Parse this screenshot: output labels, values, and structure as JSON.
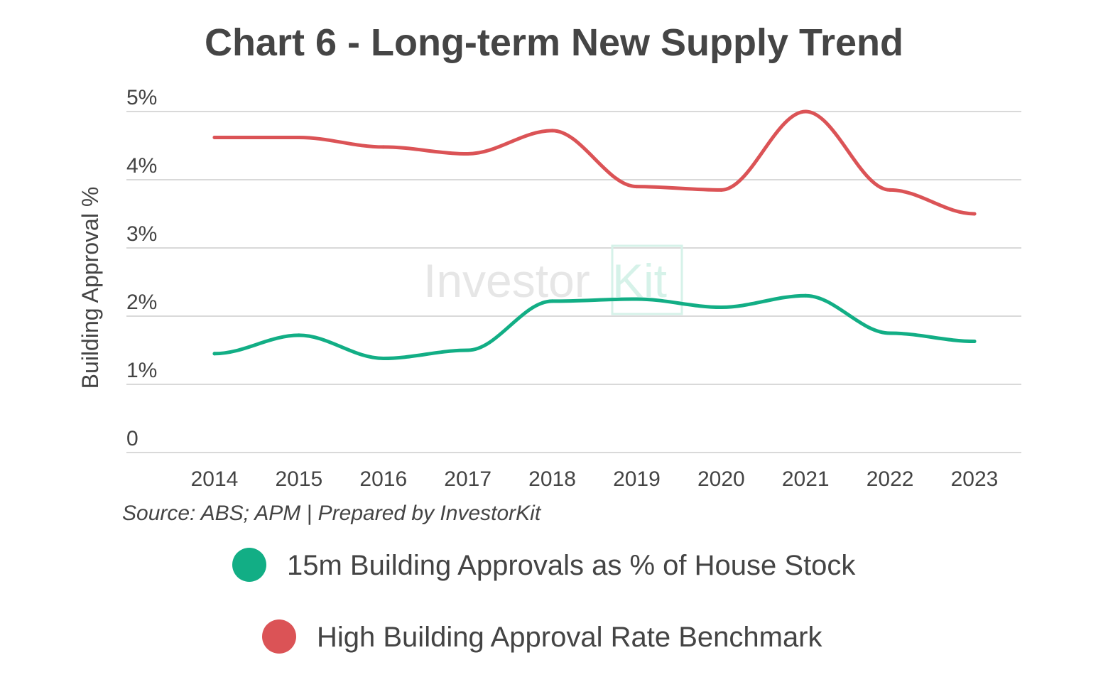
{
  "chart_data": {
    "type": "line",
    "title": "Chart 6 - Long-term New Supply Trend",
    "ylabel": "Building Approval %",
    "xlabel": "",
    "categories": [
      "2014",
      "2015",
      "2016",
      "2017",
      "2018",
      "2019",
      "2020",
      "2021",
      "2022",
      "2023"
    ],
    "ylim": [
      0,
      5
    ],
    "yticks": [
      {
        "value": 0,
        "label": "0"
      },
      {
        "value": 1,
        "label": "1%"
      },
      {
        "value": 2,
        "label": "2%"
      },
      {
        "value": 3,
        "label": "3%"
      },
      {
        "value": 4,
        "label": "4%"
      },
      {
        "value": 5,
        "label": "5%"
      }
    ],
    "grid": true,
    "legend_position": "bottom",
    "source": "Source: ABS; APM | Prepared by InvestorKit",
    "series": [
      {
        "name": "15m Building Approvals as % of House Stock",
        "color": "#12AE85",
        "values": [
          1.45,
          1.72,
          1.38,
          1.5,
          2.22,
          2.25,
          2.13,
          2.3,
          1.75,
          1.63
        ]
      },
      {
        "name": "High Building Approval Rate Benchmark",
        "color": "#DB5356",
        "values": [
          4.62,
          4.62,
          4.48,
          4.38,
          4.72,
          3.9,
          3.85,
          5.0,
          3.85,
          3.5
        ]
      }
    ],
    "watermark": {
      "word1": "Investor",
      "word2": "Kit"
    }
  }
}
